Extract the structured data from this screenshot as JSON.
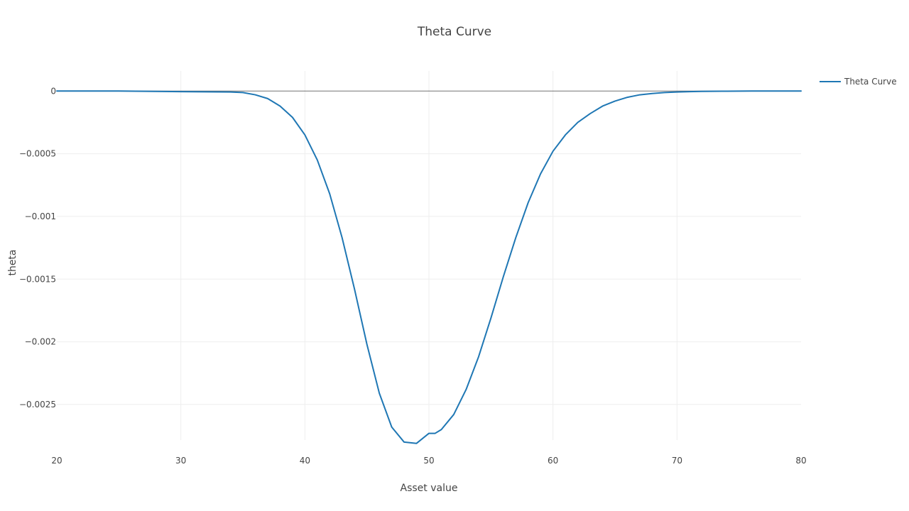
{
  "chart_data": {
    "type": "line",
    "title": "Theta Curve",
    "xlabel": "Asset value",
    "ylabel": "theta",
    "xlim": [
      20,
      80
    ],
    "ylim": [
      -0.00284,
      0.00016
    ],
    "x_ticks": [
      20,
      30,
      40,
      50,
      60,
      70,
      80
    ],
    "x_tick_labels": [
      "20",
      "30",
      "40",
      "50",
      "60",
      "70",
      "80"
    ],
    "y_ticks": [
      0,
      -0.0005,
      -0.001,
      -0.0015,
      -0.002,
      -0.0025
    ],
    "y_tick_labels": [
      "0",
      "−0.0005",
      "−0.001",
      "−0.0015",
      "−0.002",
      "−0.0025"
    ],
    "grid": true,
    "zero_line": true,
    "legend_position": "top-right",
    "colors": {
      "series": "#1f77b4",
      "grid": "#eeeeee",
      "zeroline": "#444444",
      "text": "#444444"
    },
    "series": [
      {
        "name": "Theta Curve",
        "x": [
          20,
          25,
          30,
          34,
          35,
          36,
          37,
          38,
          39,
          40,
          41,
          42,
          43,
          44,
          45,
          46,
          47,
          48,
          49,
          50,
          50.5,
          51,
          52,
          53,
          54,
          55,
          56,
          57,
          58,
          59,
          60,
          61,
          62,
          63,
          64,
          65,
          66,
          67,
          68,
          69,
          70,
          71,
          72,
          74,
          76,
          80
        ],
        "y": [
          0,
          0,
          -5e-06,
          -8e-06,
          -1.2e-05,
          -3e-05,
          -6e-05,
          -0.00012,
          -0.00021,
          -0.00035,
          -0.00055,
          -0.00082,
          -0.00117,
          -0.00158,
          -0.00202,
          -0.00241,
          -0.00268,
          -0.0028,
          -0.00281,
          -0.00273,
          -0.00273,
          -0.0027,
          -0.00258,
          -0.00238,
          -0.00212,
          -0.00181,
          -0.00148,
          -0.00117,
          -0.00089,
          -0.00066,
          -0.00048,
          -0.00035,
          -0.00025,
          -0.00018,
          -0.00012,
          -8e-05,
          -5e-05,
          -3e-05,
          -2e-05,
          -1.2e-05,
          -8e-06,
          -5e-06,
          -3e-06,
          -1e-06,
          0,
          0
        ]
      }
    ]
  }
}
